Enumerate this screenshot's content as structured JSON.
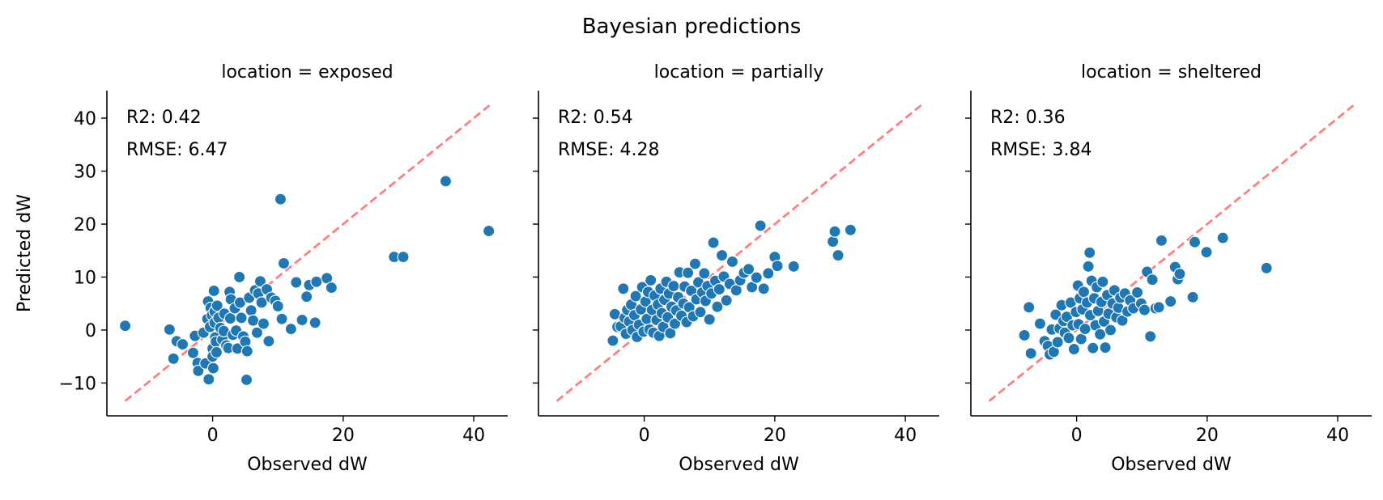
{
  "figure_title": "Bayesian predictions",
  "colors": {
    "points": "#1f77b4",
    "point_edge": "#ffffff",
    "identity_line": "#ff7f7f",
    "axis": "#000000"
  },
  "chart_data": [
    {
      "type": "scatter",
      "title": "location = exposed",
      "xlabel": "Observed dW",
      "ylabel": "Predicted dW",
      "xlim": [
        -16.2,
        45.2
      ],
      "ylim": [
        -16.2,
        45.2
      ],
      "xticks": [
        0,
        20,
        40
      ],
      "yticks": [
        -10,
        0,
        10,
        20,
        30,
        40
      ],
      "xtick_labels": [
        "0",
        "20",
        "40"
      ],
      "ytick_labels": [
        "−10",
        "0",
        "10",
        "20",
        "30",
        "40"
      ],
      "show_ytick_labels": true,
      "identity_line": [
        -13.4,
        42.4
      ],
      "annotations": [
        "R2: 0.42",
        "RMSE: 6.47"
      ],
      "grid": false,
      "points": [
        [
          -13.4,
          0.8
        ],
        [
          -6.6,
          0.1
        ],
        [
          -6.0,
          -5.4
        ],
        [
          -5.5,
          -2.1
        ],
        [
          -4.6,
          -2.7
        ],
        [
          -3.0,
          -4.3
        ],
        [
          -2.7,
          -1.1
        ],
        [
          -2.3,
          -6.2
        ],
        [
          -2.2,
          -7.7
        ],
        [
          -1.4,
          -0.5
        ],
        [
          -1.1,
          -6.3
        ],
        [
          -0.8,
          2.1
        ],
        [
          -0.7,
          5.4
        ],
        [
          -0.6,
          -9.3
        ],
        [
          -0.4,
          0.6
        ],
        [
          -0.3,
          4.2
        ],
        [
          -0.1,
          2.8
        ],
        [
          0.0,
          -3.5
        ],
        [
          0.0,
          -5.0
        ],
        [
          0.1,
          -7.2
        ],
        [
          0.2,
          7.4
        ],
        [
          0.3,
          1.4
        ],
        [
          0.3,
          3.5
        ],
        [
          0.4,
          -1.4
        ],
        [
          0.5,
          -2.2
        ],
        [
          0.6,
          -4.2
        ],
        [
          0.7,
          4.6
        ],
        [
          0.9,
          2.3
        ],
        [
          1.2,
          0.4
        ],
        [
          1.5,
          -1.8
        ],
        [
          1.7,
          -0.2
        ],
        [
          1.8,
          3.1
        ],
        [
          2.1,
          -2.9
        ],
        [
          2.4,
          -3.4
        ],
        [
          2.6,
          7.2
        ],
        [
          2.7,
          2.2
        ],
        [
          2.8,
          5.8
        ],
        [
          3.1,
          -0.9
        ],
        [
          3.4,
          4.1
        ],
        [
          3.6,
          -0.1
        ],
        [
          3.8,
          -3.5
        ],
        [
          4.1,
          10.0
        ],
        [
          4.2,
          5.2
        ],
        [
          4.4,
          2.3
        ],
        [
          4.7,
          -1.2
        ],
        [
          5.0,
          -2.2
        ],
        [
          5.2,
          -9.4
        ],
        [
          5.3,
          -4.0
        ],
        [
          5.6,
          6.1
        ],
        [
          5.9,
          3.7
        ],
        [
          6.2,
          1.8
        ],
        [
          6.5,
          7.5
        ],
        [
          6.8,
          -0.5
        ],
        [
          7.0,
          6.9
        ],
        [
          7.3,
          9.2
        ],
        [
          7.5,
          5.2
        ],
        [
          7.8,
          1.2
        ],
        [
          8.3,
          7.7
        ],
        [
          8.6,
          -2.1
        ],
        [
          9.0,
          6.1
        ],
        [
          9.6,
          5.5
        ],
        [
          10.0,
          4.5
        ],
        [
          10.4,
          24.7
        ],
        [
          10.6,
          2.1
        ],
        [
          10.9,
          12.6
        ],
        [
          12.0,
          0.2
        ],
        [
          12.8,
          9.0
        ],
        [
          13.7,
          1.9
        ],
        [
          14.4,
          6.3
        ],
        [
          14.8,
          8.5
        ],
        [
          15.7,
          1.4
        ],
        [
          15.9,
          9.1
        ],
        [
          17.5,
          9.8
        ],
        [
          18.2,
          8.0
        ],
        [
          27.8,
          13.8
        ],
        [
          29.2,
          13.8
        ],
        [
          35.7,
          28.1
        ],
        [
          42.3,
          18.7
        ]
      ]
    },
    {
      "type": "scatter",
      "title": "location = partially",
      "xlabel": "Observed dW",
      "ylabel": "",
      "xlim": [
        -16.2,
        45.2
      ],
      "ylim": [
        -16.2,
        45.2
      ],
      "xticks": [
        0,
        20,
        40
      ],
      "yticks": [
        -10,
        0,
        10,
        20,
        30,
        40
      ],
      "xtick_labels": [
        "0",
        "20",
        "40"
      ],
      "ytick_labels": [],
      "show_ytick_labels": false,
      "identity_line": [
        -13.4,
        42.4
      ],
      "annotations": [
        "R2: 0.54",
        "RMSE: 4.28"
      ],
      "grid": false,
      "points": [
        [
          -4.8,
          -2.0
        ],
        [
          -4.5,
          3.0
        ],
        [
          -4.1,
          0.6
        ],
        [
          -3.6,
          0.7
        ],
        [
          -3.2,
          7.8
        ],
        [
          -3.0,
          2.3
        ],
        [
          -2.8,
          -0.7
        ],
        [
          -2.6,
          3.8
        ],
        [
          -2.3,
          1.6
        ],
        [
          -2.0,
          4.8
        ],
        [
          -1.8,
          0.0
        ],
        [
          -1.5,
          2.8
        ],
        [
          -1.3,
          6.4
        ],
        [
          -1.1,
          -1.3
        ],
        [
          -0.8,
          1.0
        ],
        [
          -0.5,
          3.9
        ],
        [
          -0.3,
          8.1
        ],
        [
          -0.1,
          -0.3
        ],
        [
          0.2,
          5.4
        ],
        [
          0.4,
          2.1
        ],
        [
          0.6,
          7.2
        ],
        [
          0.8,
          0.1
        ],
        [
          1.0,
          9.4
        ],
        [
          1.2,
          3.8
        ],
        [
          1.4,
          -0.5
        ],
        [
          1.6,
          6.5
        ],
        [
          1.9,
          1.9
        ],
        [
          2.1,
          4.8
        ],
        [
          2.3,
          -1.1
        ],
        [
          2.5,
          7.8
        ],
        [
          2.7,
          3.2
        ],
        [
          2.9,
          0.6
        ],
        [
          3.1,
          5.7
        ],
        [
          3.4,
          9.1
        ],
        [
          3.6,
          2.4
        ],
        [
          3.8,
          6.9
        ],
        [
          4.0,
          -0.6
        ],
        [
          4.2,
          4.4
        ],
        [
          4.5,
          8.3
        ],
        [
          4.7,
          1.2
        ],
        [
          4.9,
          3.7
        ],
        [
          5.2,
          6.2
        ],
        [
          5.4,
          10.9
        ],
        [
          5.7,
          2.7
        ],
        [
          6.0,
          5.0
        ],
        [
          6.2,
          8.2
        ],
        [
          6.5,
          1.5
        ],
        [
          6.7,
          10.8
        ],
        [
          6.9,
          4.3
        ],
        [
          7.2,
          7.4
        ],
        [
          7.5,
          2.6
        ],
        [
          7.8,
          12.5
        ],
        [
          8.0,
          5.8
        ],
        [
          8.3,
          9.0
        ],
        [
          8.6,
          3.4
        ],
        [
          8.9,
          7.1
        ],
        [
          9.2,
          10.7
        ],
        [
          9.4,
          5.5
        ],
        [
          9.7,
          8.3
        ],
        [
          10.0,
          2.0
        ],
        [
          10.3,
          6.9
        ],
        [
          10.6,
          16.5
        ],
        [
          10.9,
          9.3
        ],
        [
          11.2,
          4.4
        ],
        [
          11.5,
          7.7
        ],
        [
          11.9,
          14.1
        ],
        [
          12.2,
          10.1
        ],
        [
          12.6,
          5.6
        ],
        [
          13.1,
          8.7
        ],
        [
          13.5,
          12.9
        ],
        [
          14.1,
          7.5
        ],
        [
          14.7,
          9.4
        ],
        [
          15.3,
          10.8
        ],
        [
          16.0,
          11.5
        ],
        [
          16.5,
          8.1
        ],
        [
          17.2,
          9.9
        ],
        [
          17.8,
          19.7
        ],
        [
          18.3,
          7.8
        ],
        [
          19.0,
          10.7
        ],
        [
          20.0,
          13.8
        ],
        [
          20.4,
          12.1
        ],
        [
          22.9,
          12.0
        ],
        [
          28.9,
          16.7
        ],
        [
          29.2,
          18.6
        ],
        [
          29.7,
          14.1
        ],
        [
          31.6,
          18.9
        ]
      ]
    },
    {
      "type": "scatter",
      "title": "location = sheltered",
      "xlabel": "Observed dW",
      "ylabel": "",
      "xlim": [
        -16.2,
        45.2
      ],
      "ylim": [
        -16.2,
        45.2
      ],
      "xticks": [
        0,
        20,
        40
      ],
      "yticks": [
        -10,
        0,
        10,
        20,
        30,
        40
      ],
      "xtick_labels": [
        "0",
        "20",
        "40"
      ],
      "ytick_labels": [],
      "show_ytick_labels": false,
      "identity_line": [
        -13.4,
        42.4
      ],
      "annotations": [
        "R2: 0.36",
        "RMSE: 3.84"
      ],
      "grid": false,
      "points": [
        [
          -8.0,
          -1.0
        ],
        [
          -7.3,
          4.3
        ],
        [
          -7.0,
          -4.4
        ],
        [
          -5.6,
          1.2
        ],
        [
          -4.9,
          -2.1
        ],
        [
          -4.4,
          -3.0
        ],
        [
          -4.1,
          -4.6
        ],
        [
          -3.8,
          0.1
        ],
        [
          -3.5,
          -4.1
        ],
        [
          -3.2,
          2.9
        ],
        [
          -2.9,
          -2.3
        ],
        [
          -2.6,
          0.3
        ],
        [
          -2.3,
          4.7
        ],
        [
          -2.0,
          1.7
        ],
        [
          -1.8,
          -0.5
        ],
        [
          -1.5,
          2.5
        ],
        [
          -1.2,
          -1.5
        ],
        [
          -0.9,
          5.2
        ],
        [
          -0.6,
          0.9
        ],
        [
          -0.4,
          -3.6
        ],
        [
          -0.1,
          3.4
        ],
        [
          0.2,
          8.4
        ],
        [
          0.3,
          1.1
        ],
        [
          0.5,
          6.0
        ],
        [
          0.7,
          -1.7
        ],
        [
          0.9,
          3.9
        ],
        [
          1.1,
          7.2
        ],
        [
          1.3,
          0.2
        ],
        [
          1.6,
          5.2
        ],
        [
          1.8,
          12.0
        ],
        [
          2.0,
          14.6
        ],
        [
          2.1,
          2.8
        ],
        [
          2.3,
          9.3
        ],
        [
          2.5,
          -3.4
        ],
        [
          2.7,
          6.0
        ],
        [
          2.9,
          0.9
        ],
        [
          3.1,
          8.1
        ],
        [
          3.3,
          3.6
        ],
        [
          3.6,
          -0.8
        ],
        [
          3.8,
          5.3
        ],
        [
          4.0,
          9.1
        ],
        [
          4.2,
          1.6
        ],
        [
          4.4,
          -3.3
        ],
        [
          4.7,
          6.6
        ],
        [
          4.9,
          3.1
        ],
        [
          5.2,
          0.0
        ],
        [
          5.5,
          5.0
        ],
        [
          5.8,
          7.5
        ],
        [
          6.1,
          2.4
        ],
        [
          6.4,
          4.2
        ],
        [
          6.7,
          6.1
        ],
        [
          7.0,
          1.8
        ],
        [
          7.4,
          6.9
        ],
        [
          7.8,
          3.5
        ],
        [
          8.2,
          5.6
        ],
        [
          8.7,
          4.1
        ],
        [
          9.3,
          7.1
        ],
        [
          9.9,
          5.0
        ],
        [
          10.4,
          3.8
        ],
        [
          10.8,
          11.0
        ],
        [
          11.3,
          -1.2
        ],
        [
          11.6,
          9.5
        ],
        [
          12.1,
          4.1
        ],
        [
          12.6,
          4.3
        ],
        [
          13.0,
          16.9
        ],
        [
          14.4,
          5.4
        ],
        [
          15.1,
          11.9
        ],
        [
          15.5,
          9.6
        ],
        [
          15.8,
          10.6
        ],
        [
          17.8,
          6.2
        ],
        [
          18.1,
          16.6
        ],
        [
          19.9,
          14.7
        ],
        [
          22.4,
          17.4
        ],
        [
          29.1,
          11.7
        ]
      ]
    }
  ]
}
